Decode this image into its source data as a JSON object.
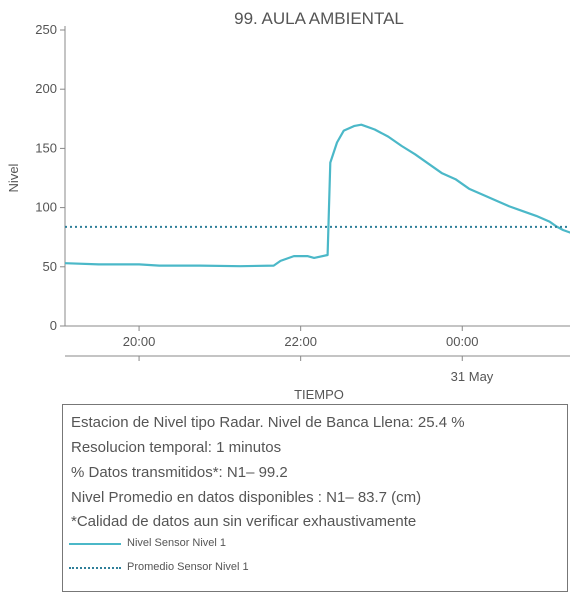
{
  "chart_data": {
    "type": "line",
    "title": "99. AULA AMBIENTAL",
    "xlabel": "TIEMPO",
    "ylabel": "Nivel",
    "ylim": [
      0,
      250
    ],
    "yticks": [
      0,
      50,
      100,
      150,
      200,
      250
    ],
    "xlim": [
      "2024-05-30T19:05",
      "2024-05-31T01:20"
    ],
    "xticks": [
      {
        "t": "2024-05-30T20:00",
        "label": "20:00"
      },
      {
        "t": "2024-05-30T22:00",
        "label": "22:00"
      },
      {
        "t": "2024-05-31T00:00",
        "label": "00:00"
      }
    ],
    "date_label": "31 May",
    "grid": false,
    "series": [
      {
        "name": "Nivel Sensor Nivel 1",
        "color": "#4bb8c8",
        "style": "solid",
        "points": [
          [
            "2024-05-30T19:05",
            53
          ],
          [
            "2024-05-30T19:30",
            52
          ],
          [
            "2024-05-30T20:00",
            52
          ],
          [
            "2024-05-30T20:15",
            51
          ],
          [
            "2024-05-30T20:45",
            51
          ],
          [
            "2024-05-30T21:15",
            50.5
          ],
          [
            "2024-05-30T21:40",
            51
          ],
          [
            "2024-05-30T21:45",
            55
          ],
          [
            "2024-05-30T21:55",
            59
          ],
          [
            "2024-05-30T22:05",
            59
          ],
          [
            "2024-05-30T22:10",
            57.5
          ],
          [
            "2024-05-30T22:20",
            60
          ],
          [
            "2024-05-30T22:22",
            138
          ],
          [
            "2024-05-30T22:27",
            155
          ],
          [
            "2024-05-30T22:32",
            165
          ],
          [
            "2024-05-30T22:40",
            169
          ],
          [
            "2024-05-30T22:45",
            170
          ],
          [
            "2024-05-30T22:55",
            166
          ],
          [
            "2024-05-30T23:05",
            160
          ],
          [
            "2024-05-30T23:15",
            152
          ],
          [
            "2024-05-30T23:25",
            145
          ],
          [
            "2024-05-30T23:35",
            137
          ],
          [
            "2024-05-30T23:45",
            129
          ],
          [
            "2024-05-30T23:55",
            124
          ],
          [
            "2024-05-31T00:05",
            116
          ],
          [
            "2024-05-31T00:15",
            111
          ],
          [
            "2024-05-31T00:25",
            106
          ],
          [
            "2024-05-31T00:35",
            101
          ],
          [
            "2024-05-31T00:45",
            97
          ],
          [
            "2024-05-31T00:55",
            93
          ],
          [
            "2024-05-31T01:05",
            88
          ],
          [
            "2024-05-31T01:10",
            84
          ],
          [
            "2024-05-31T01:15",
            81
          ],
          [
            "2024-05-31T01:20",
            79
          ],
          [
            "2024-05-31T01:30",
            77.5
          ]
        ]
      },
      {
        "name": "Promedio Sensor Nivel 1",
        "color": "#2f7f99",
        "style": "dotted",
        "constant": 83.7
      }
    ]
  },
  "info": {
    "line1": "Estacion de Nivel tipo Radar. Nivel de Banca Llena: 25.4 %",
    "line2": "Resolucion temporal: 1 minutos",
    "line3": "% Datos transmitidos*: N1– 99.2",
    "line4": "Nivel Promedio en datos disponibles : N1– 83.7 (cm)",
    "line5": "*Calidad de datos aun sin verificar exhaustivamente",
    "legend": [
      {
        "label": "Nivel Sensor Nivel 1",
        "color": "#4bb8c8",
        "style": "solid"
      },
      {
        "label": "Promedio Sensor Nivel 1",
        "color": "#2f7f99",
        "style": "dotted"
      }
    ]
  }
}
